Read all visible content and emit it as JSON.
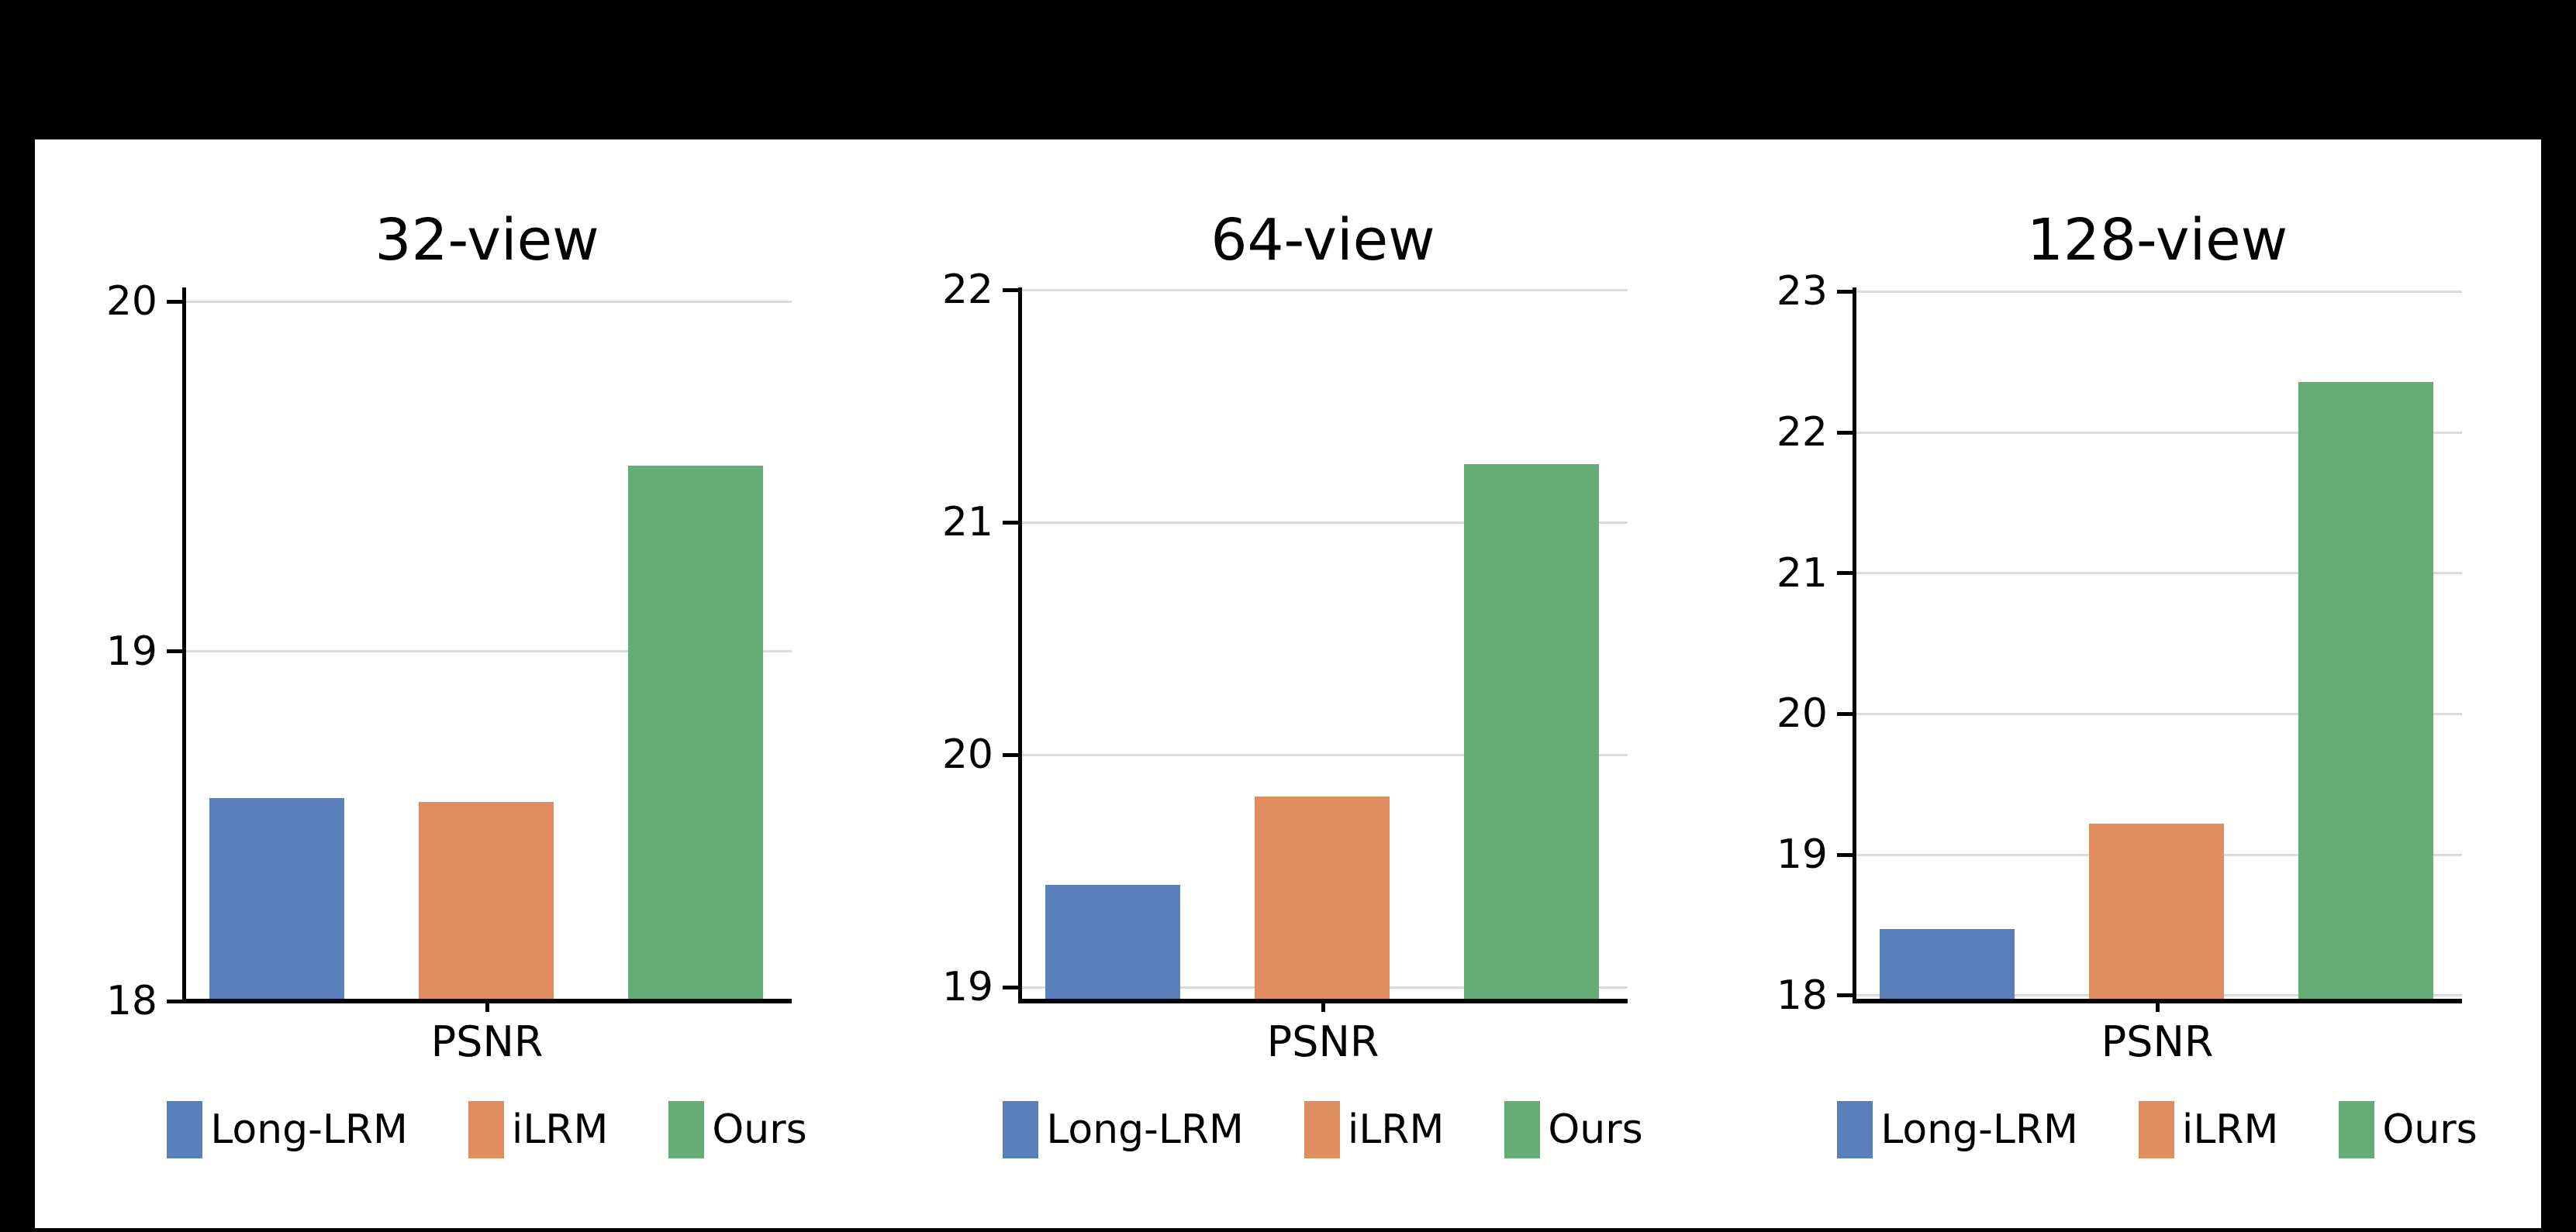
{
  "figure": {
    "background": "#000000",
    "panel_background": "#ffffff"
  },
  "colors": {
    "series": {
      "Long-LRM": "#5A7FBA",
      "iLRM": "#DF8F5F",
      "Ours": "#64AD76"
    },
    "gridline": "#DCDCDC",
    "axis": "#000000",
    "text": "#000000"
  },
  "legend": {
    "items": [
      {
        "label": "Long-LRM",
        "color_key": "Long-LRM"
      },
      {
        "label": "iLRM",
        "color_key": "iLRM"
      },
      {
        "label": "Ours",
        "color_key": "Ours"
      }
    ],
    "position": "below-each-subplot"
  },
  "chart_data": [
    {
      "type": "bar",
      "title": "32-view",
      "x_tick_label": "PSNR",
      "categories": [
        "Long-LRM",
        "iLRM",
        "Ours"
      ],
      "values": [
        18.58,
        18.57,
        19.53
      ],
      "yticks": [
        18,
        19,
        20
      ],
      "ylim": [
        18.0,
        20.04
      ],
      "grid": "horizontal"
    },
    {
      "type": "bar",
      "title": "64-view",
      "x_tick_label": "PSNR",
      "categories": [
        "Long-LRM",
        "iLRM",
        "Ours"
      ],
      "values": [
        19.44,
        19.82,
        21.25
      ],
      "yticks": [
        19,
        20,
        21,
        22
      ],
      "ylim": [
        18.94,
        22.01
      ],
      "grid": "horizontal"
    },
    {
      "type": "bar",
      "title": "128-view",
      "x_tick_label": "PSNR",
      "categories": [
        "Long-LRM",
        "iLRM",
        "Ours"
      ],
      "values": [
        18.47,
        19.22,
        22.36
      ],
      "yticks": [
        18,
        19,
        20,
        21,
        22,
        23
      ],
      "ylim": [
        17.96,
        23.03
      ],
      "grid": "horizontal"
    }
  ]
}
